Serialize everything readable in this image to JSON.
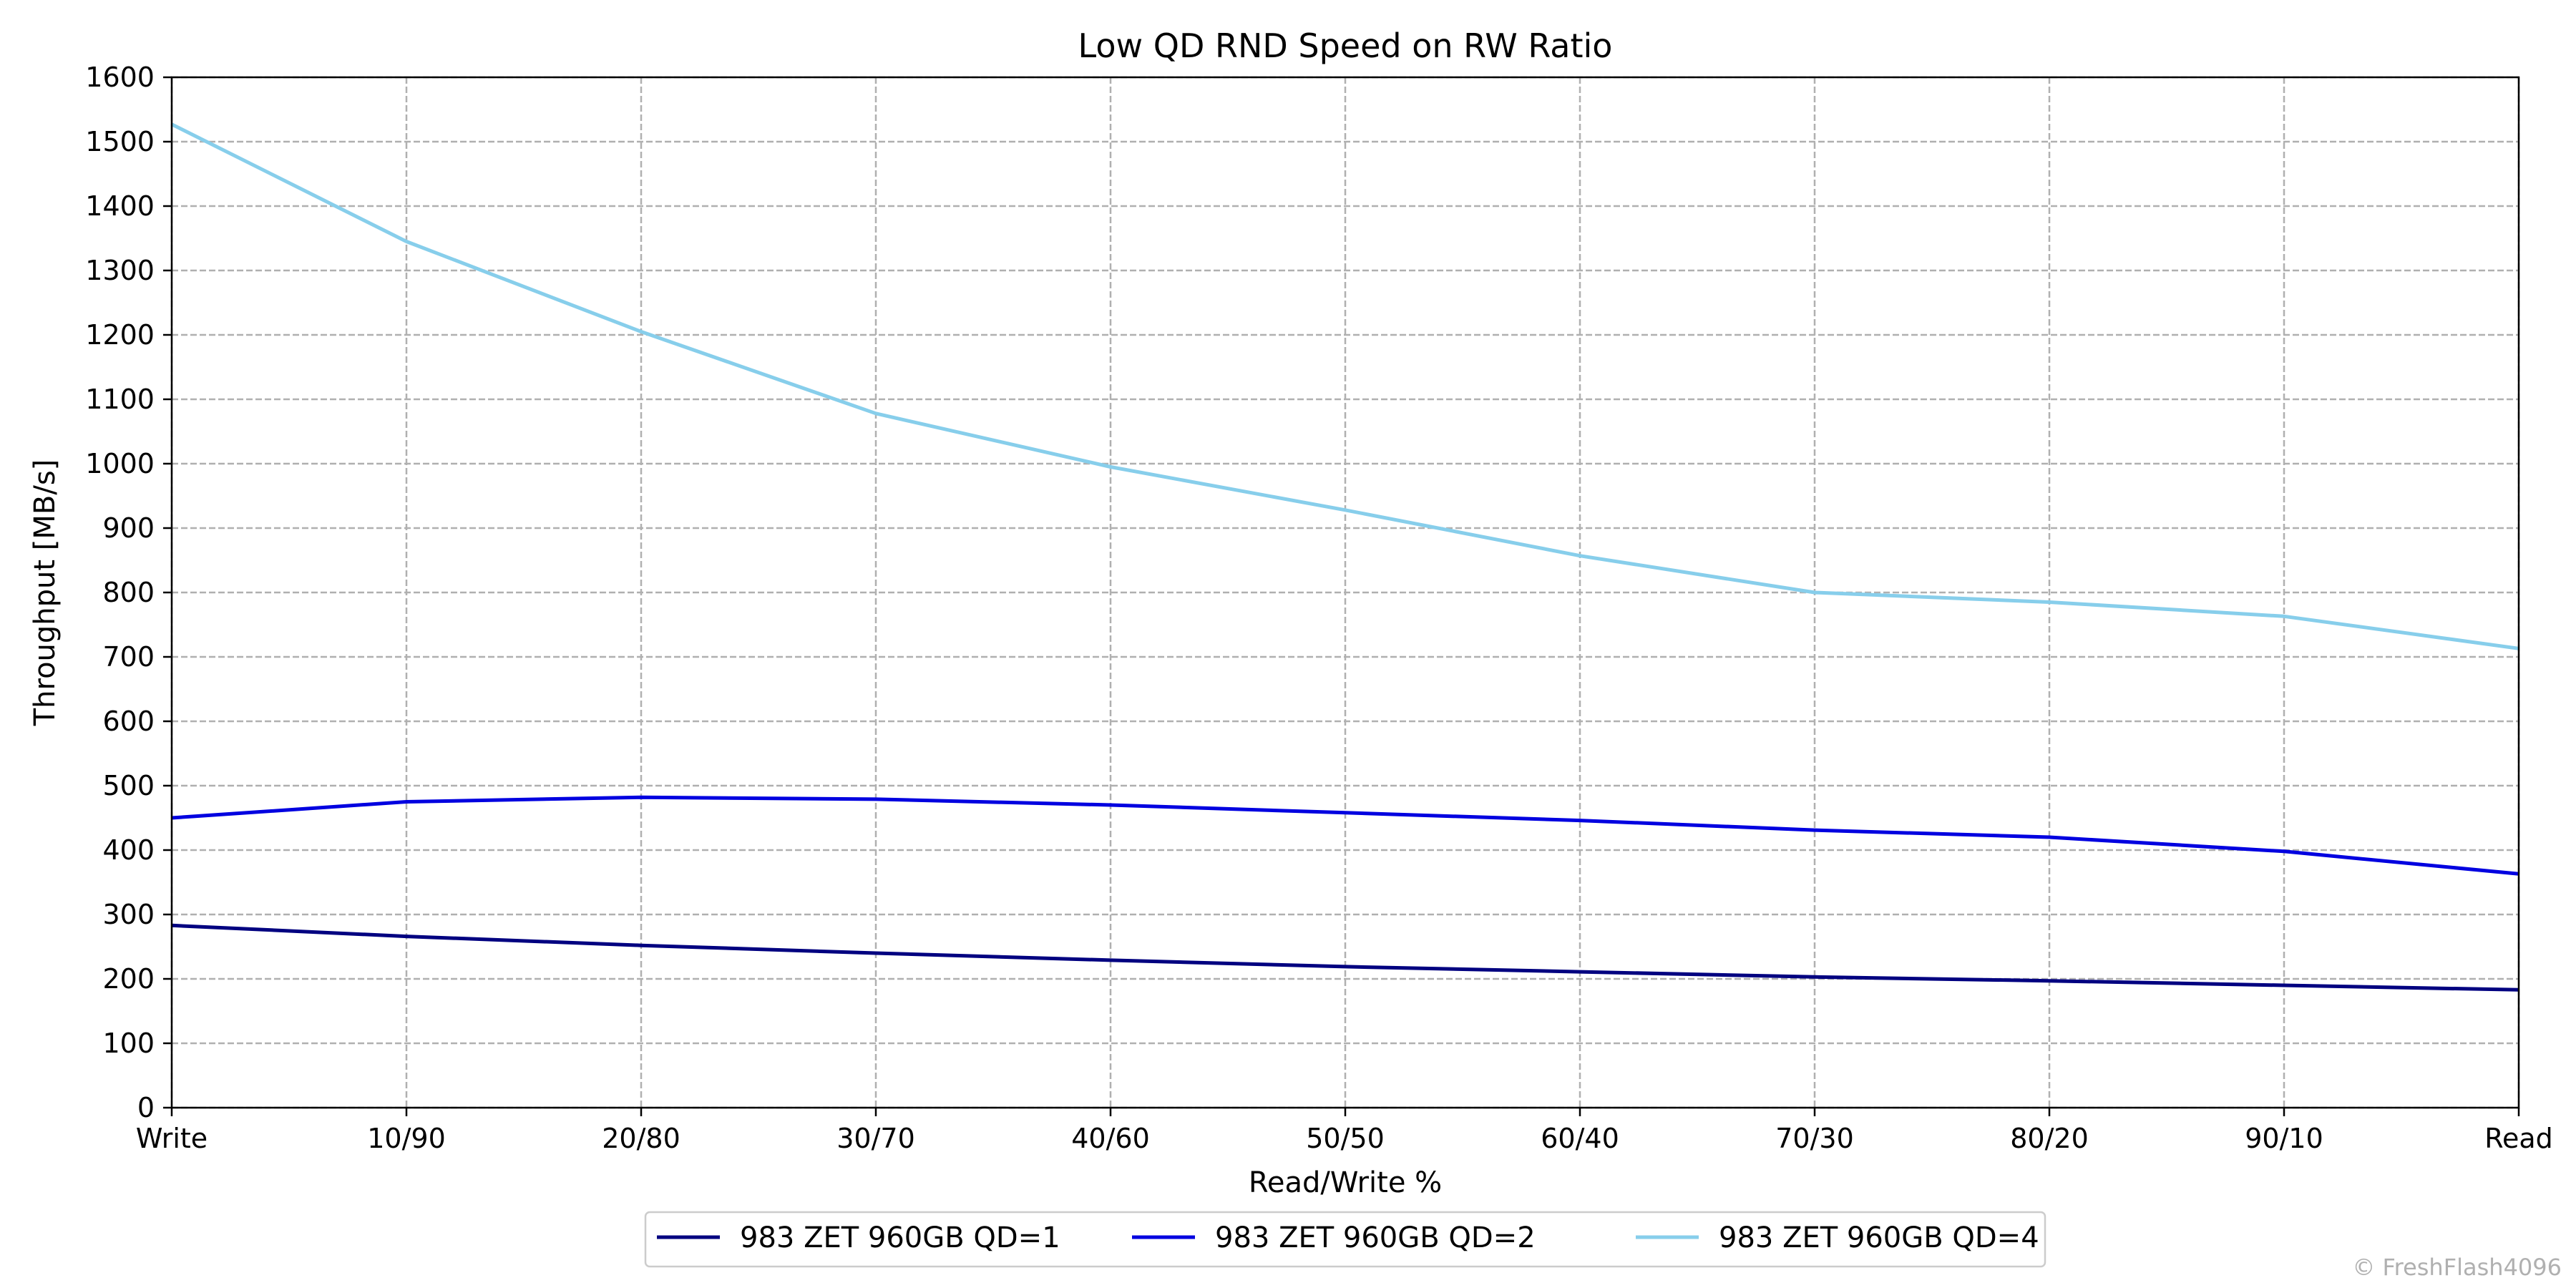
{
  "chart_data": {
    "type": "line",
    "title": "Low QD RND Speed on RW Ratio",
    "xlabel": "Read/Write %",
    "ylabel": "Throughput [MB/s]",
    "categories": [
      "Write",
      "10/90",
      "20/80",
      "30/70",
      "40/60",
      "50/50",
      "60/40",
      "70/30",
      "80/20",
      "90/10",
      "Read"
    ],
    "ylim": [
      0,
      1600
    ],
    "yticks": [
      0,
      100,
      200,
      300,
      400,
      500,
      600,
      700,
      800,
      900,
      1000,
      1100,
      1200,
      1300,
      1400,
      1500,
      1600
    ],
    "grid": true,
    "legend_position": "bottom-center",
    "series": [
      {
        "name": "983 ZET 960GB QD=1",
        "color": "#000080",
        "values": [
          283,
          266,
          252,
          240,
          229,
          219,
          211,
          203,
          197,
          190,
          183
        ]
      },
      {
        "name": "983 ZET 960GB QD=2",
        "color": "#0000e0",
        "values": [
          450,
          475,
          482,
          479,
          470,
          458,
          446,
          431,
          420,
          398,
          363
        ]
      },
      {
        "name": "983 ZET 960GB QD=4",
        "color": "#87ceeb",
        "values": [
          1527,
          1345,
          1205,
          1078,
          995,
          928,
          857,
          800,
          785,
          763,
          713
        ]
      }
    ]
  },
  "watermark": "© FreshFlash4096"
}
